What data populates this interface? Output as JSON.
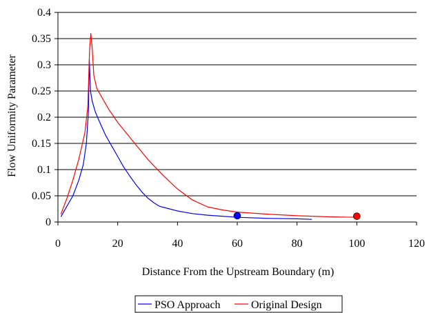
{
  "chart_data": {
    "type": "line",
    "title": "",
    "xlabel": "Distance From the Upstream Boundary (m)",
    "ylabel": "Flow Uniformity Parameter",
    "xlim": [
      0,
      120
    ],
    "ylim": [
      0,
      0.4
    ],
    "x_ticks": [
      0,
      20,
      40,
      60,
      80,
      100,
      120
    ],
    "y_ticks": [
      0,
      0.05,
      0.1,
      0.15,
      0.2,
      0.25,
      0.3,
      0.35,
      0.4
    ],
    "x_tick_labels": [
      "0",
      "20",
      "40",
      "60",
      "80",
      "100",
      "120"
    ],
    "y_tick_labels": [
      "0",
      "0.05",
      "0.1",
      "0.15",
      "0.2",
      "0.25",
      "0.3",
      "0.35",
      "0.4"
    ],
    "grid": "horizontal",
    "legend_position": "bottom-center",
    "series": [
      {
        "name": "PSO Approach",
        "color": "#0000ff",
        "x": [
          1,
          3,
          5,
          7,
          8.5,
          9.5,
          10.2,
          10.5,
          10.9,
          11.5,
          12.5,
          14,
          16,
          18,
          20,
          22,
          24,
          26,
          28,
          30,
          32,
          34,
          36,
          40,
          45,
          50,
          55,
          60,
          70,
          80,
          85
        ],
        "y": [
          0.01,
          0.03,
          0.05,
          0.08,
          0.11,
          0.15,
          0.21,
          0.31,
          0.25,
          0.23,
          0.21,
          0.19,
          0.165,
          0.145,
          0.125,
          0.105,
          0.088,
          0.072,
          0.058,
          0.046,
          0.037,
          0.03,
          0.027,
          0.021,
          0.016,
          0.013,
          0.011,
          0.009,
          0.007,
          0.006,
          0.005
        ],
        "marker": {
          "x": 60,
          "y": 0.012
        }
      },
      {
        "name": "Original Design",
        "color": "#ff0000",
        "x": [
          1,
          3,
          5,
          7,
          9,
          10,
          10.6,
          11,
          11.5,
          12,
          13,
          15,
          17,
          20,
          25,
          30,
          35,
          40,
          45,
          50,
          55,
          60,
          70,
          80,
          90,
          100
        ],
        "y": [
          0.015,
          0.045,
          0.08,
          0.12,
          0.17,
          0.22,
          0.33,
          0.36,
          0.33,
          0.28,
          0.255,
          0.235,
          0.215,
          0.19,
          0.155,
          0.12,
          0.09,
          0.063,
          0.042,
          0.029,
          0.023,
          0.019,
          0.015,
          0.012,
          0.01,
          0.009
        ],
        "marker": {
          "x": 100,
          "y": 0.011
        }
      }
    ]
  }
}
